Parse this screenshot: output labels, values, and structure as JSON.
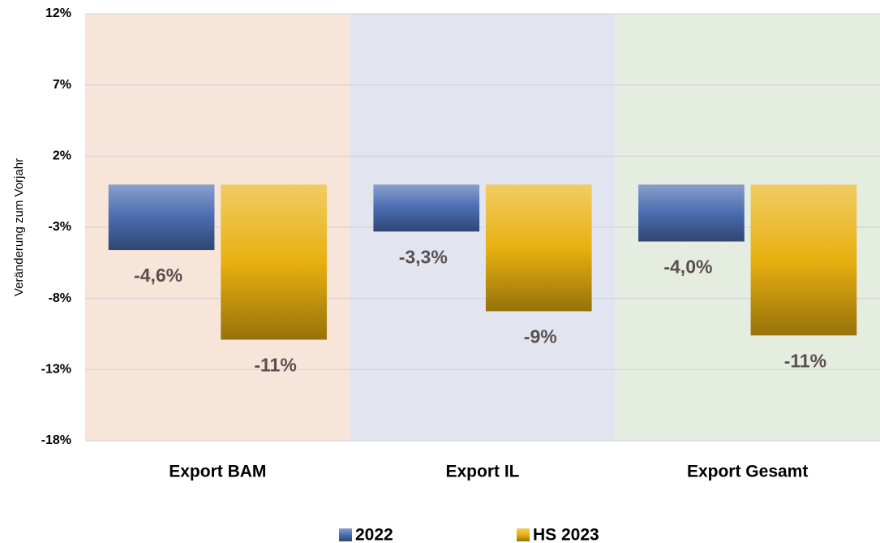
{
  "chart_data": {
    "type": "bar",
    "y_axis_label": "Veränderung zum Vorjahr",
    "categories": [
      "Export BAM",
      "Export IL",
      "Export Gesamt"
    ],
    "category_colors": [
      "#f7e5da",
      "#e2e5f0",
      "#e5ece0"
    ],
    "series": [
      {
        "name": "2022",
        "color": "#4a6cb0",
        "values": [
          -4.6,
          -3.3,
          -4.0
        ],
        "value_labels": [
          "-4,6%",
          "-3,3%",
          "-4,0%"
        ]
      },
      {
        "name": "HS 2023",
        "color": "#e8b010",
        "values": [
          -10.9,
          -8.9,
          -10.6
        ],
        "value_labels": [
          "-11%",
          "-9%",
          "-11%"
        ]
      }
    ],
    "ylim": [
      -18,
      12
    ],
    "yticks": [
      {
        "value": -18,
        "label": "-18%"
      },
      {
        "value": -13,
        "label": "-13%"
      },
      {
        "value": -8,
        "label": "-8%"
      },
      {
        "value": -3,
        "label": "-3%"
      },
      {
        "value": 2,
        "label": "2%"
      },
      {
        "value": 7,
        "label": "7%"
      },
      {
        "value": 12,
        "label": "12%"
      }
    ],
    "grid": true,
    "legend": "bottom"
  }
}
